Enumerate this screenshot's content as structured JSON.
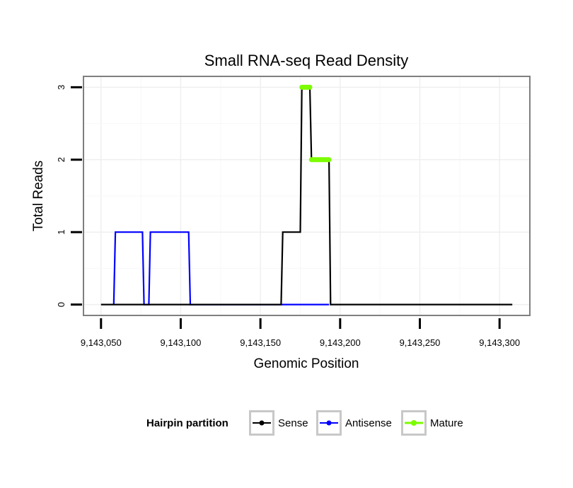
{
  "chart_data": {
    "type": "line",
    "title": "Small RNA-seq Read Density",
    "xlabel": "Genomic Position",
    "ylabel": "Total Reads",
    "xlim": [
      9143039,
      9143319
    ],
    "ylim": [
      -0.15,
      3.15
    ],
    "xticks": [
      9143050,
      9143100,
      9143150,
      9143200,
      9143250,
      9143300
    ],
    "xtick_labels": [
      "9,143,050",
      "9,143,100",
      "9,143,150",
      "9,143,200",
      "9,143,250",
      "9,143,300"
    ],
    "yticks": [
      0,
      1,
      2,
      3
    ],
    "ytick_labels": [
      "0",
      "1",
      "2",
      "3"
    ],
    "grid": true,
    "legend": {
      "title": "Hairpin partition",
      "position": "bottom",
      "entries": [
        {
          "name": "Sense",
          "color": "#000000"
        },
        {
          "name": "Antisense",
          "color": "#0000ff"
        },
        {
          "name": "Mature",
          "color": "#7cfc00"
        }
      ]
    },
    "series": [
      {
        "name": "Sense",
        "color": "#000000",
        "x": [
          9143050,
          9143163,
          9143164,
          9143175,
          9143176,
          9143181,
          9143182,
          9143193,
          9143194,
          9143308
        ],
        "y": [
          0,
          0,
          1,
          1,
          3,
          3,
          2,
          2,
          0,
          0
        ]
      },
      {
        "name": "Antisense",
        "color": "#0000ff",
        "x": [
          9143058,
          9143059,
          9143076,
          9143077,
          9143080,
          9143081,
          9143105,
          9143106,
          9143193
        ],
        "y": [
          0,
          1,
          1,
          0,
          0,
          1,
          1,
          0,
          0
        ]
      },
      {
        "name": "Mature",
        "color": "#7cfc00",
        "segments": [
          {
            "x": [
              9143176,
              9143181
            ],
            "y": [
              3,
              3
            ]
          },
          {
            "x": [
              9143182,
              9143193
            ],
            "y": [
              2,
              2
            ]
          }
        ]
      }
    ]
  }
}
